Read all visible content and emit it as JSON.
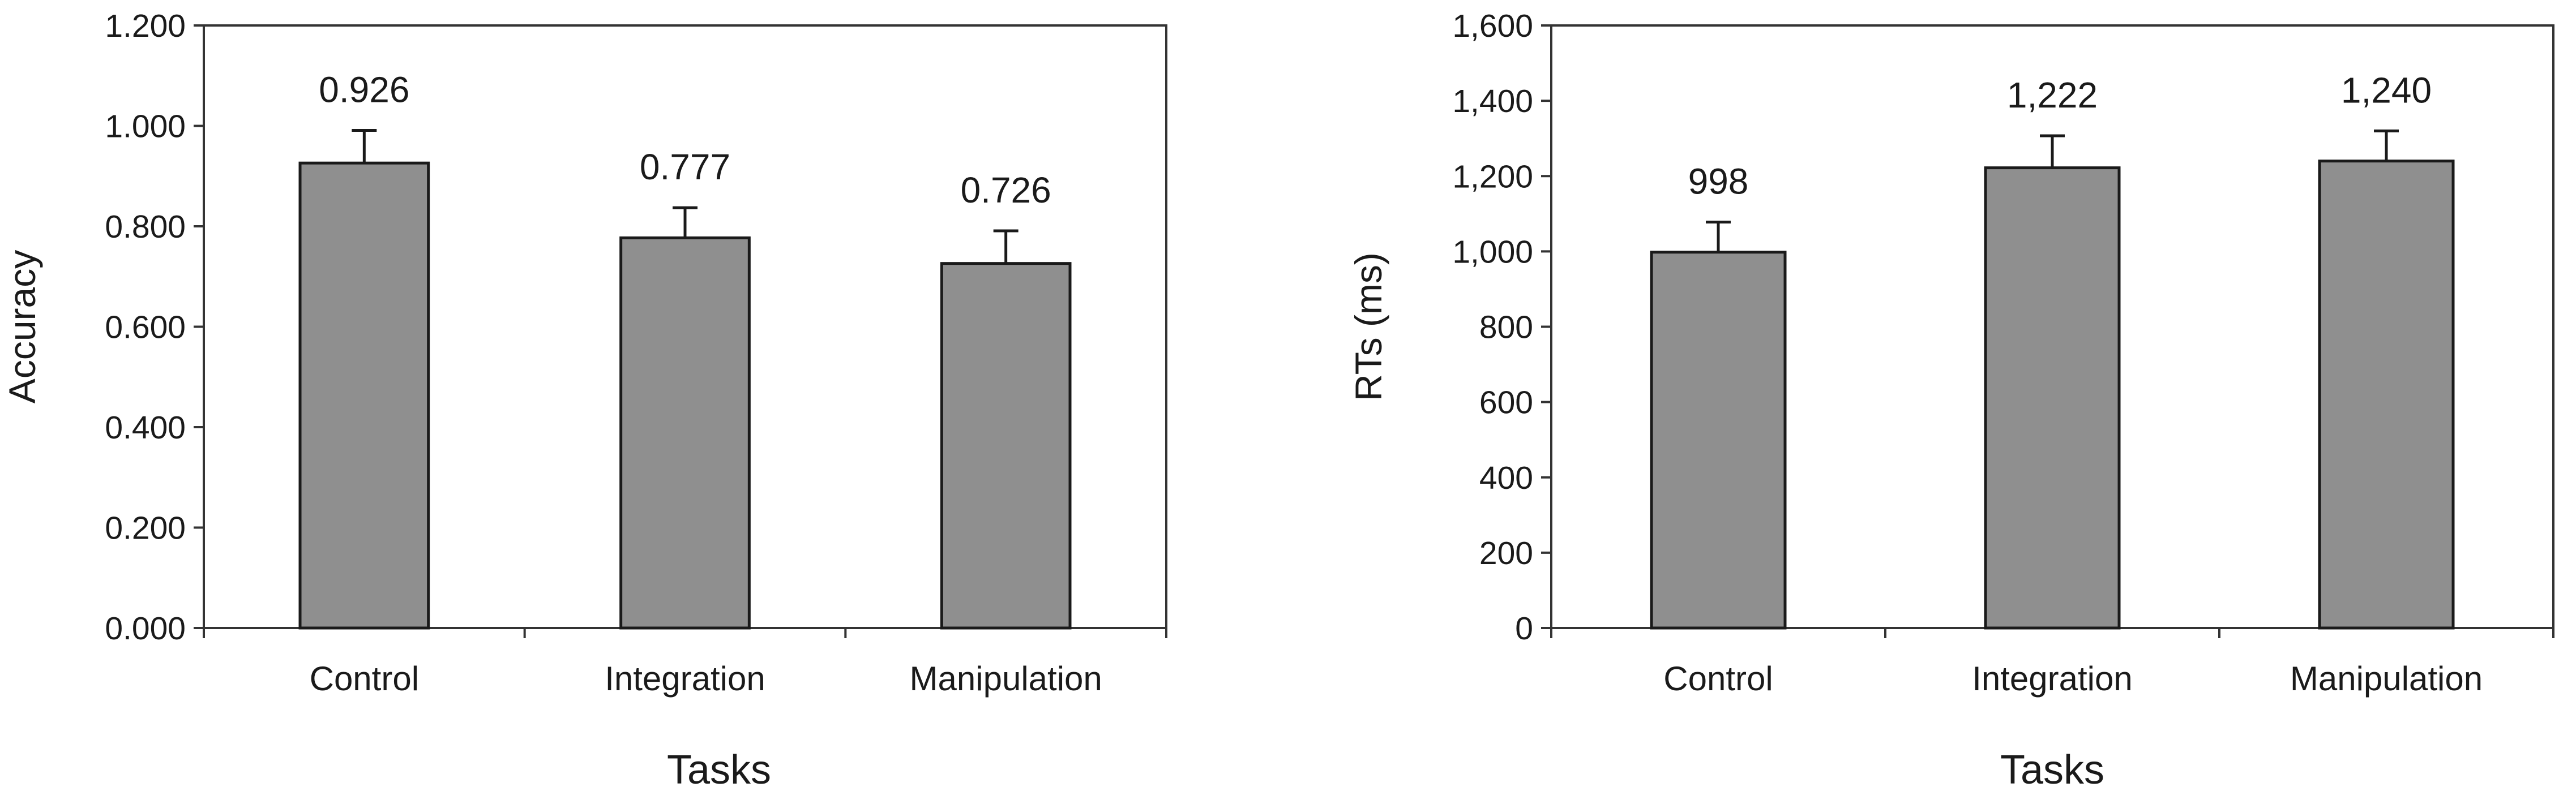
{
  "chart_data": [
    {
      "type": "bar",
      "title": "",
      "xlabel": "Tasks",
      "ylabel": "Accuracy",
      "categories": [
        "Control",
        "Integration",
        "Manipulation"
      ],
      "values": [
        0.926,
        0.777,
        0.726
      ],
      "data_labels": [
        "0.926",
        "0.777",
        "0.726"
      ],
      "error": [
        0.065,
        0.06,
        0.065
      ],
      "ylim": [
        0,
        1.2
      ],
      "yticks": [
        0,
        0.2,
        0.4,
        0.6,
        0.8,
        1.0,
        1.2
      ],
      "ytick_labels": [
        "0.000",
        "0.200",
        "0.400",
        "0.600",
        "0.800",
        "1.000",
        "1.200"
      ],
      "grid": false,
      "bar_color": "#8f8f8f"
    },
    {
      "type": "bar",
      "title": "",
      "xlabel": "Tasks",
      "ylabel": "RTs (ms)",
      "categories": [
        "Control",
        "Integration",
        "Manipulation"
      ],
      "values": [
        998,
        1222,
        1240
      ],
      "data_labels": [
        "998",
        "1,222",
        "1,240"
      ],
      "error": [
        80,
        85,
        80
      ],
      "ylim": [
        0,
        1600
      ],
      "yticks": [
        0,
        200,
        400,
        600,
        800,
        1000,
        1200,
        1400,
        1600
      ],
      "ytick_labels": [
        "0",
        "200",
        "400",
        "600",
        "800",
        "1,000",
        "1,200",
        "1,400",
        "1,600"
      ],
      "grid": false,
      "bar_color": "#8f8f8f"
    }
  ]
}
